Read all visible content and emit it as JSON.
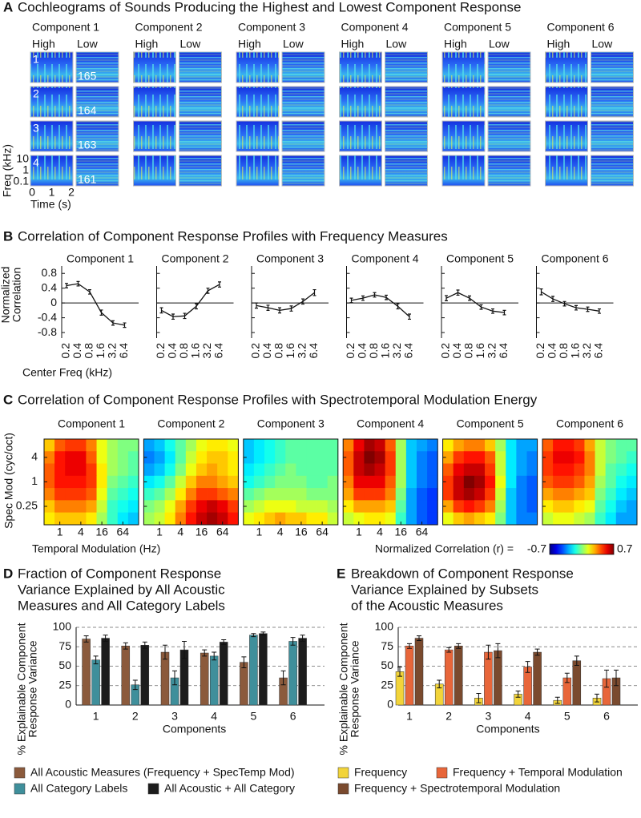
{
  "panel_a": {
    "letter": "A",
    "title": "Cochleograms of Sounds Producing the Highest and Lowest Component Response",
    "components": [
      "Component 1",
      "Component 2",
      "Component 3",
      "Component 4",
      "Component 5",
      "Component 6"
    ],
    "high_label": "High",
    "low_label": "Low",
    "ranks_high": [
      1,
      2,
      3,
      4
    ],
    "ranks_low": [
      165,
      164,
      163,
      161
    ],
    "y_label": "Freq (kHz)",
    "yticks": [
      10,
      1,
      0.1
    ],
    "x_label": "Time (s)",
    "xticks": [
      0,
      1,
      2
    ]
  },
  "chart_data": [
    {
      "type": "line",
      "letter": "B",
      "title": "Correlation of Component Response Profiles with Frequency Measures",
      "y_label": [
        "Normalized",
        "Correlation"
      ],
      "x_label": "Center Freq (kHz)",
      "categories": [
        "0.2",
        "0.4",
        "0.8",
        "1.6",
        "3.2",
        "6.4"
      ],
      "ylim": [
        -0.95,
        1.0
      ],
      "yticks": [
        0.8,
        0.4,
        0,
        -0.4,
        -0.8
      ],
      "series": [
        {
          "name": "Component 1",
          "color": "#111111",
          "values": [
            0.47,
            0.52,
            0.3,
            -0.26,
            -0.54,
            -0.6
          ],
          "errors": [
            0.06,
            0.06,
            0.06,
            0.07,
            0.06,
            0.06
          ]
        },
        {
          "name": "Component 2",
          "color": "#111111",
          "values": [
            -0.2,
            -0.37,
            -0.35,
            -0.09,
            0.33,
            0.5
          ],
          "errors": [
            0.07,
            0.07,
            0.07,
            0.07,
            0.07,
            0.07
          ]
        },
        {
          "name": "Component 3",
          "color": "#111111",
          "values": [
            -0.07,
            -0.13,
            -0.2,
            -0.15,
            0.04,
            0.28
          ],
          "errors": [
            0.07,
            0.07,
            0.07,
            0.07,
            0.07,
            0.08
          ]
        },
        {
          "name": "Component 4",
          "color": "#111111",
          "values": [
            0.07,
            0.13,
            0.22,
            0.15,
            -0.09,
            -0.37
          ],
          "errors": [
            0.06,
            0.06,
            0.06,
            0.06,
            0.07,
            0.07
          ]
        },
        {
          "name": "Component 5",
          "color": "#111111",
          "values": [
            0.13,
            0.28,
            0.13,
            -0.11,
            -0.22,
            -0.26
          ],
          "errors": [
            0.07,
            0.07,
            0.06,
            0.06,
            0.06,
            0.06
          ]
        },
        {
          "name": "Component 6",
          "color": "#111111",
          "values": [
            0.3,
            0.11,
            -0.02,
            -0.13,
            -0.17,
            -0.22
          ],
          "errors": [
            0.08,
            0.07,
            0.06,
            0.06,
            0.06,
            0.06
          ]
        }
      ]
    },
    {
      "type": "heatmap",
      "letter": "C",
      "title": "Correlation of Component Response Profiles with Spectrotemporal Modulation Energy",
      "y_label": "Spec Mod (cyc/oct)",
      "x_label": "Temporal Modulation (Hz)",
      "x": [
        0.5,
        1,
        2,
        4,
        8,
        16,
        32,
        64,
        128
      ],
      "y": [
        8,
        4,
        2,
        1,
        0.5,
        0.25,
        0.125
      ],
      "xlim": [
        0.354,
        181
      ],
      "ylim": [
        0.088,
        11.3
      ],
      "xticks": [
        1,
        4,
        16,
        64
      ],
      "yticks": [
        4,
        1,
        0.25
      ],
      "log_scale": true,
      "colorbar": {
        "label": "Normalized Correlation (r) =",
        "clim": [
          -0.7,
          0.7
        ],
        "ticks": [
          -0.7,
          0.7
        ],
        "colormap": "jet"
      },
      "series": [
        {
          "name": "Component 1",
          "xticks_shown": true,
          "values": [
            [
              0.25,
              0.4,
              0.45,
              0.45,
              0.35,
              0.15,
              0.05,
              0.0,
              0.0
            ],
            [
              0.35,
              0.5,
              0.55,
              0.55,
              0.4,
              0.15,
              0.05,
              0.0,
              -0.05
            ],
            [
              0.4,
              0.5,
              0.55,
              0.55,
              0.45,
              0.2,
              0.05,
              0.0,
              -0.05
            ],
            [
              0.4,
              0.5,
              0.5,
              0.5,
              0.45,
              0.2,
              0.0,
              -0.05,
              -0.1
            ],
            [
              0.35,
              0.45,
              0.45,
              0.45,
              0.4,
              0.15,
              -0.05,
              -0.1,
              -0.15
            ],
            [
              0.25,
              0.35,
              0.35,
              0.35,
              0.3,
              0.1,
              -0.1,
              -0.15,
              -0.2
            ],
            [
              0.2,
              0.25,
              0.25,
              0.25,
              0.2,
              0.05,
              -0.1,
              -0.2,
              -0.25
            ]
          ]
        },
        {
          "name": "Component 2",
          "xticks_shown": true,
          "values": [
            [
              -0.3,
              -0.25,
              -0.15,
              -0.05,
              0.05,
              0.15,
              0.2,
              0.2,
              0.15
            ],
            [
              -0.35,
              -0.3,
              -0.2,
              -0.05,
              0.1,
              0.2,
              0.25,
              0.25,
              0.2
            ],
            [
              -0.3,
              -0.25,
              -0.15,
              0.0,
              0.15,
              0.25,
              0.3,
              0.25,
              0.2
            ],
            [
              -0.2,
              -0.15,
              -0.05,
              0.1,
              0.25,
              0.35,
              0.35,
              0.3,
              0.25
            ],
            [
              -0.1,
              -0.05,
              0.05,
              0.2,
              0.35,
              0.45,
              0.45,
              0.4,
              0.35
            ],
            [
              0.0,
              0.05,
              0.15,
              0.3,
              0.45,
              0.55,
              0.6,
              0.55,
              0.45
            ],
            [
              0.05,
              0.1,
              0.2,
              0.35,
              0.5,
              0.6,
              0.65,
              0.6,
              0.5
            ]
          ]
        },
        {
          "name": "Component 3",
          "xticks_shown": true,
          "values": [
            [
              -0.25,
              -0.2,
              -0.15,
              -0.1,
              -0.05,
              -0.05,
              -0.05,
              -0.05,
              -0.05
            ],
            [
              -0.25,
              -0.2,
              -0.15,
              -0.1,
              -0.05,
              -0.05,
              -0.05,
              -0.05,
              -0.05
            ],
            [
              -0.2,
              -0.15,
              -0.1,
              -0.05,
              0.0,
              -0.05,
              -0.05,
              -0.05,
              -0.05
            ],
            [
              -0.15,
              -0.1,
              -0.05,
              0.0,
              0.0,
              0.0,
              -0.05,
              -0.05,
              0.0
            ],
            [
              -0.05,
              0.0,
              0.05,
              0.05,
              0.05,
              0.05,
              0.0,
              0.0,
              0.0
            ],
            [
              0.05,
              0.1,
              0.15,
              0.15,
              0.15,
              0.1,
              0.1,
              0.1,
              0.05
            ],
            [
              0.15,
              0.2,
              0.25,
              0.3,
              0.25,
              0.25,
              0.2,
              0.2,
              0.1
            ]
          ]
        },
        {
          "name": "Component 4",
          "xticks_shown": true,
          "values": [
            [
              0.35,
              0.55,
              0.65,
              0.6,
              0.4,
              0.05,
              -0.25,
              -0.3,
              -0.35
            ],
            [
              0.4,
              0.6,
              0.7,
              0.65,
              0.45,
              0.05,
              -0.25,
              -0.35,
              -0.4
            ],
            [
              0.4,
              0.6,
              0.65,
              0.6,
              0.45,
              0.05,
              -0.25,
              -0.35,
              -0.4
            ],
            [
              0.35,
              0.55,
              0.55,
              0.55,
              0.4,
              0.05,
              -0.25,
              -0.35,
              -0.4
            ],
            [
              0.3,
              0.45,
              0.45,
              0.45,
              0.35,
              0.0,
              -0.3,
              -0.4,
              -0.45
            ],
            [
              0.2,
              0.3,
              0.3,
              0.3,
              0.25,
              -0.05,
              -0.3,
              -0.4,
              -0.45
            ],
            [
              0.1,
              0.15,
              0.2,
              0.2,
              0.15,
              -0.1,
              -0.3,
              -0.4,
              -0.45
            ]
          ]
        },
        {
          "name": "Component 5",
          "xticks_shown": false,
          "values": [
            [
              0.2,
              0.3,
              0.35,
              0.35,
              0.25,
              0.05,
              -0.2,
              -0.3,
              -0.3
            ],
            [
              0.3,
              0.45,
              0.5,
              0.5,
              0.4,
              0.1,
              -0.2,
              -0.3,
              -0.35
            ],
            [
              0.4,
              0.55,
              0.6,
              0.6,
              0.45,
              0.1,
              -0.2,
              -0.3,
              -0.35
            ],
            [
              0.45,
              0.6,
              0.7,
              0.65,
              0.5,
              0.15,
              -0.2,
              -0.35,
              -0.4
            ],
            [
              0.45,
              0.6,
              0.65,
              0.6,
              0.45,
              0.1,
              -0.25,
              -0.35,
              -0.4
            ],
            [
              0.3,
              0.45,
              0.5,
              0.45,
              0.35,
              0.05,
              -0.25,
              -0.35,
              -0.4
            ],
            [
              0.15,
              0.25,
              0.3,
              0.25,
              0.2,
              0.0,
              -0.25,
              -0.35,
              -0.35
            ]
          ]
        },
        {
          "name": "Component 6",
          "xticks_shown": false,
          "values": [
            [
              0.4,
              0.5,
              0.5,
              0.45,
              0.3,
              0.1,
              0.0,
              -0.05,
              -0.05
            ],
            [
              0.45,
              0.55,
              0.55,
              0.5,
              0.35,
              0.1,
              0.0,
              -0.05,
              -0.1
            ],
            [
              0.45,
              0.5,
              0.5,
              0.45,
              0.35,
              0.1,
              -0.05,
              -0.1,
              -0.15
            ],
            [
              0.4,
              0.45,
              0.45,
              0.4,
              0.3,
              0.05,
              -0.05,
              -0.15,
              -0.2
            ],
            [
              0.3,
              0.35,
              0.35,
              0.3,
              0.25,
              0.0,
              -0.1,
              -0.2,
              -0.25
            ],
            [
              0.2,
              0.25,
              0.25,
              0.2,
              0.15,
              -0.05,
              -0.15,
              -0.25,
              -0.3
            ],
            [
              0.1,
              0.15,
              0.15,
              0.1,
              0.05,
              -0.1,
              -0.2,
              -0.3,
              -0.3
            ]
          ]
        }
      ]
    },
    {
      "type": "bar",
      "letter": "D",
      "title": [
        "Fraction of Component Response",
        "Variance Explained by All Acoustic",
        "Measures and All Category Labels"
      ],
      "y_label": [
        "% Explainable Component",
        "Response Variance"
      ],
      "x_label": "Components",
      "categories": [
        "1",
        "2",
        "3",
        "4",
        "5",
        "6"
      ],
      "ylim": [
        0,
        100
      ],
      "yticks": [
        0,
        25,
        50,
        75,
        100
      ],
      "grid": "dashed",
      "series": [
        {
          "name": "All Acoustic Measures (Frequency + SpecTemp Mod)",
          "color": "#8b5a3c",
          "values": [
            85,
            76,
            68,
            67,
            55,
            35
          ],
          "errors": [
            4,
            4,
            9,
            4,
            7,
            9
          ]
        },
        {
          "name": "All Category Labels",
          "color": "#3f8f9b",
          "values": [
            58,
            26,
            35,
            63,
            90,
            82
          ],
          "errors": [
            5,
            6,
            9,
            5,
            2,
            5
          ]
        },
        {
          "name": "All Acoustic + All Category",
          "color": "#1c1c1c",
          "values": [
            86,
            77,
            71,
            81,
            92,
            86
          ],
          "errors": [
            4,
            4,
            11,
            3,
            2,
            4
          ]
        }
      ]
    },
    {
      "type": "bar",
      "letter": "E",
      "title": [
        "Breakdown of Component Response",
        "Variance Explained by Subsets",
        "of the Acoustic Measures"
      ],
      "y_label": [
        "% Explainable Component",
        "Response Variance"
      ],
      "x_label": "Components",
      "categories": [
        "1",
        "2",
        "3",
        "4",
        "5",
        "6"
      ],
      "ylim": [
        0,
        100
      ],
      "yticks": [
        0,
        25,
        50,
        75,
        100
      ],
      "grid": "dashed",
      "series": [
        {
          "name": "Frequency",
          "color": "#f2d43a",
          "values": [
            43,
            27,
            9,
            14,
            6,
            9
          ],
          "errors": [
            6,
            5,
            6,
            4,
            4,
            5
          ]
        },
        {
          "name": "Frequency + Temporal Modulation",
          "color": "#e8663a",
          "values": [
            76,
            71,
            68,
            49,
            35,
            34
          ],
          "errors": [
            3,
            3,
            9,
            7,
            6,
            11
          ]
        },
        {
          "name": "Frequency + Spectrotemporal Modulation",
          "color": "#7a4a2e",
          "values": [
            86,
            76,
            70,
            68,
            57,
            35
          ],
          "errors": [
            3,
            3,
            9,
            4,
            6,
            10
          ]
        }
      ]
    }
  ]
}
